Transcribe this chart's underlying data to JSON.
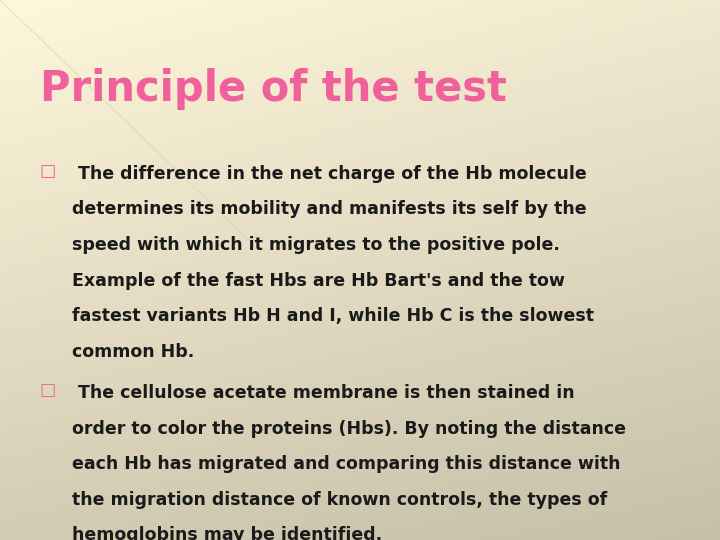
{
  "title": "Principle of the test",
  "title_color": "#F0609A",
  "title_fontsize": 30,
  "background_color": "#F0E8CC",
  "bg_light": "#F8F4E4",
  "bullet_color": "#F0609A",
  "bullet_char": "□",
  "text_color": "#1a1a1a",
  "text_fontsize": 12.5,
  "para1_lines": [
    " The difference in the net charge of the Hb molecule",
    "determines its mobility and manifests its self by the",
    "speed with which it migrates to the positive pole.",
    "Example of the fast Hbs are Hb Bart's and the tow",
    "fastest variants Hb H and I, while Hb C is the slowest",
    "common Hb."
  ],
  "para2_lines": [
    " The cellulose acetate membrane is then stained in",
    "order to color the proteins (Hbs). By noting the distance",
    "each Hb has migrated and comparing this distance with",
    "the migration distance of known controls, the types of",
    "hemoglobins may be identified."
  ]
}
